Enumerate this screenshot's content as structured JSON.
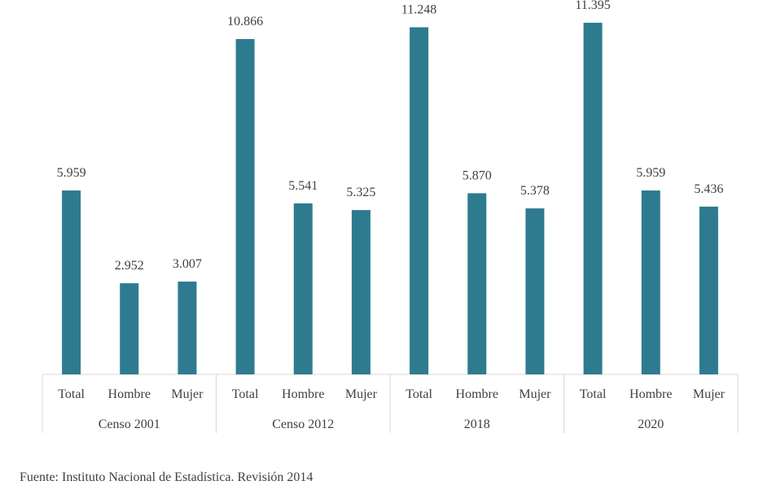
{
  "chart_data": {
    "type": "bar",
    "groups": [
      {
        "label": "Censo 2001",
        "categories": [
          "Total",
          "Hombre",
          "Mujer"
        ],
        "values": [
          5959,
          2952,
          3007
        ],
        "labels": [
          "5.959",
          "2.952",
          "3.007"
        ]
      },
      {
        "label": "Censo 2012",
        "categories": [
          "Total",
          "Hombre",
          "Mujer"
        ],
        "values": [
          10866,
          5541,
          5325
        ],
        "labels": [
          "10.866",
          "5.541",
          "5.325"
        ]
      },
      {
        "label": "2018",
        "categories": [
          "Total",
          "Hombre",
          "Mujer"
        ],
        "values": [
          11248,
          5870,
          5378
        ],
        "labels": [
          "11.248",
          "5.870",
          "5.378"
        ]
      },
      {
        "label": "2020",
        "categories": [
          "Total",
          "Hombre",
          "Mujer"
        ],
        "values": [
          11395,
          5959,
          5436
        ],
        "labels": [
          "11.395",
          "5.959",
          "5.436"
        ]
      }
    ],
    "ylim": [
      0,
      12000
    ],
    "grid": false,
    "bar_color": "#2e7b8f",
    "axis_color": "#d9d9d9"
  },
  "footer": {
    "source": "Fuente: Instituto Nacional de Estadística. Revisión 2014"
  }
}
